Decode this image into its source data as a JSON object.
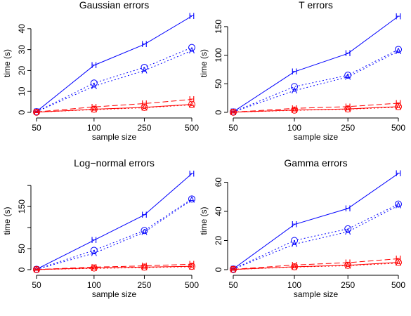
{
  "chart_data": [
    {
      "type": "line",
      "title": "Gaussian errors",
      "xlabel": "sample size",
      "ylabel": "time (s)",
      "categories": [
        "50",
        "100",
        "250",
        "500"
      ],
      "ylim": [
        0,
        47
      ],
      "yticks": [
        0,
        10,
        20,
        30,
        40
      ],
      "series": [
        {
          "marker": "H",
          "color": "#0000ff",
          "dash": "solid",
          "values": [
            0.4,
            22.5,
            32.5,
            46
          ]
        },
        {
          "marker": "O",
          "color": "#0000ff",
          "dash": "dotted",
          "values": [
            0.3,
            14,
            21.5,
            31
          ]
        },
        {
          "marker": "A",
          "color": "#0000ff",
          "dash": "dotted",
          "values": [
            0.3,
            12.5,
            20,
            29.5
          ]
        },
        {
          "marker": "H",
          "color": "#ff0000",
          "dash": "dashed",
          "values": [
            0.2,
            2.6,
            4.2,
            6.2
          ]
        },
        {
          "marker": "O",
          "color": "#ff0000",
          "dash": "solid",
          "values": [
            0.1,
            1.5,
            2.4,
            3.8
          ]
        },
        {
          "marker": "A",
          "color": "#ff0000",
          "dash": "dotted",
          "values": [
            0.1,
            1.3,
            2.2,
            3.6
          ]
        }
      ]
    },
    {
      "type": "line",
      "title": "T errors",
      "xlabel": "sample size",
      "ylabel": "time (s)",
      "categories": [
        "50",
        "100",
        "250",
        "500"
      ],
      "ylim": [
        0,
        172
      ],
      "yticks": [
        0,
        50,
        100,
        150
      ],
      "series": [
        {
          "marker": "H",
          "color": "#0000ff",
          "dash": "solid",
          "values": [
            1,
            71,
            103,
            168
          ]
        },
        {
          "marker": "O",
          "color": "#0000ff",
          "dash": "dotted",
          "values": [
            0.8,
            45,
            65,
            110
          ]
        },
        {
          "marker": "A",
          "color": "#0000ff",
          "dash": "dotted",
          "values": [
            0.8,
            38,
            62,
            107
          ]
        },
        {
          "marker": "H",
          "color": "#ff0000",
          "dash": "dashed",
          "values": [
            0.4,
            7,
            10,
            16
          ]
        },
        {
          "marker": "O",
          "color": "#ff0000",
          "dash": "solid",
          "values": [
            0.3,
            4,
            6,
            10
          ]
        },
        {
          "marker": "A",
          "color": "#ff0000",
          "dash": "dotted",
          "values": [
            0.3,
            3.5,
            5.5,
            9
          ]
        }
      ]
    },
    {
      "type": "line",
      "title": "Log−normal errors",
      "xlabel": "sample size",
      "ylabel": "time (s)",
      "categories": [
        "50",
        "100",
        "250",
        "500"
      ],
      "ylim": [
        0,
        232
      ],
      "yticks": [
        0,
        50,
        100,
        150,
        200
      ],
      "ytick_labels": [
        "0",
        "50",
        "",
        "150",
        ""
      ],
      "series": [
        {
          "marker": "H",
          "color": "#0000ff",
          "dash": "solid",
          "values": [
            1,
            70,
            130,
            228
          ]
        },
        {
          "marker": "O",
          "color": "#0000ff",
          "dash": "dotted",
          "values": [
            0.8,
            46,
            93,
            168
          ]
        },
        {
          "marker": "A",
          "color": "#0000ff",
          "dash": "dotted",
          "values": [
            0.8,
            39,
            89,
            166
          ]
        },
        {
          "marker": "H",
          "color": "#ff0000",
          "dash": "dashed",
          "values": [
            0.4,
            6,
            9,
            13
          ]
        },
        {
          "marker": "O",
          "color": "#ff0000",
          "dash": "solid",
          "values": [
            0.3,
            4,
            6,
            8
          ]
        },
        {
          "marker": "A",
          "color": "#ff0000",
          "dash": "dotted",
          "values": [
            0.3,
            3,
            5,
            7
          ]
        }
      ]
    },
    {
      "type": "line",
      "title": "Gamma errors",
      "xlabel": "sample size",
      "ylabel": "time (s)",
      "categories": [
        "50",
        "100",
        "250",
        "500"
      ],
      "ylim": [
        0,
        67
      ],
      "yticks": [
        0,
        20,
        40,
        60
      ],
      "series": [
        {
          "marker": "H",
          "color": "#0000ff",
          "dash": "solid",
          "values": [
            0.5,
            31,
            42,
            66
          ]
        },
        {
          "marker": "O",
          "color": "#0000ff",
          "dash": "dotted",
          "values": [
            0.4,
            20,
            28,
            45
          ]
        },
        {
          "marker": "A",
          "color": "#0000ff",
          "dash": "dotted",
          "values": [
            0.4,
            17.5,
            26,
            44
          ]
        },
        {
          "marker": "H",
          "color": "#ff0000",
          "dash": "dashed",
          "values": [
            0.2,
            3.2,
            4.8,
            7.5
          ]
        },
        {
          "marker": "O",
          "color": "#ff0000",
          "dash": "solid",
          "values": [
            0.1,
            2,
            3,
            5
          ]
        },
        {
          "marker": "A",
          "color": "#ff0000",
          "dash": "dotted",
          "values": [
            0.1,
            1.8,
            2.7,
            4.5
          ]
        }
      ]
    }
  ]
}
